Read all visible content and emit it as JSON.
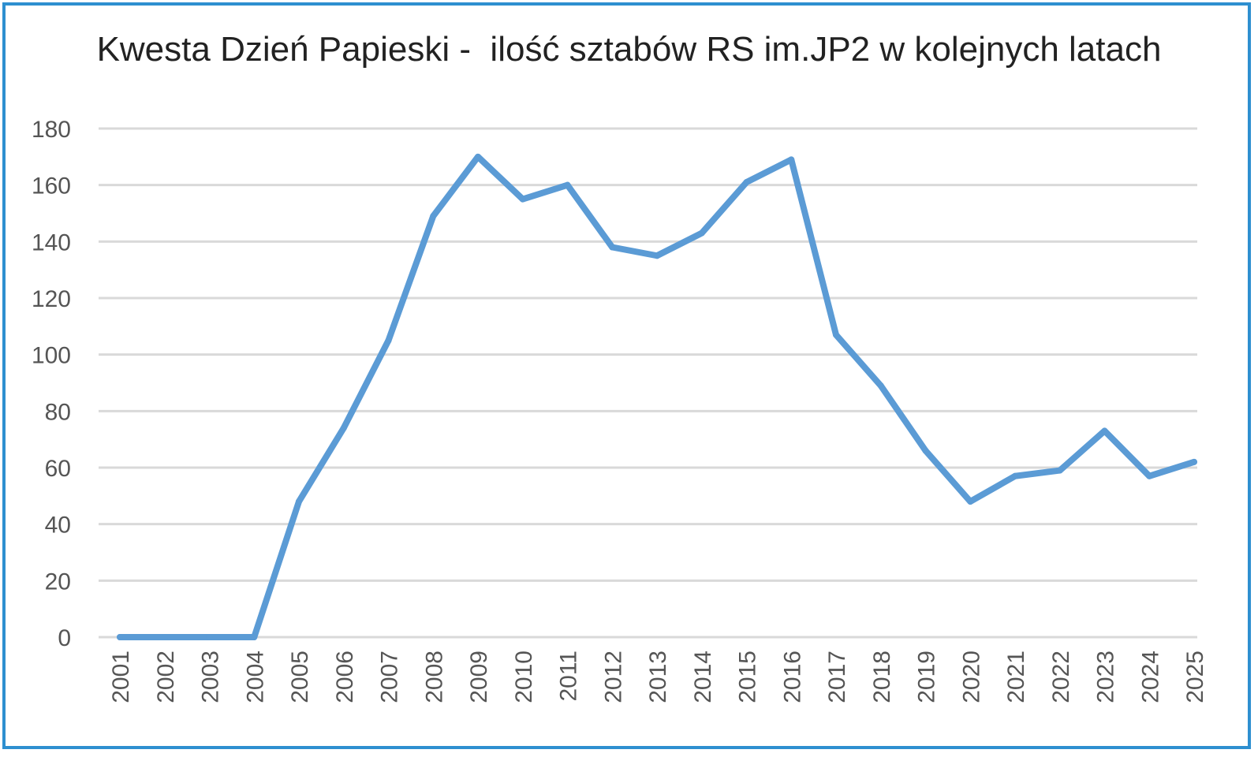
{
  "chart_data": {
    "type": "line",
    "title": "Kwesta Dzień Papieski -  ilość sztabów RS im.JP2 w kolejnych latach",
    "xlabel": "",
    "ylabel": "",
    "ylim": [
      0,
      180
    ],
    "yticks": [
      "0",
      "20",
      "40",
      "60",
      "80",
      "100",
      "120",
      "140",
      "160",
      "180"
    ],
    "grid": true,
    "legend": "none",
    "categories": [
      "2001",
      "2002",
      "2003",
      "2004",
      "2005",
      "2006",
      "2007",
      "2008",
      "2009",
      "2010",
      "2011",
      "2012",
      "2013",
      "2014",
      "2015",
      "2016",
      "2017",
      "2018",
      "2019",
      "2020",
      "2021",
      "2022",
      "2023",
      "2024",
      "2025"
    ],
    "series": [
      {
        "values": [
          0,
          0,
          0,
          0,
          48,
          74,
          105,
          149,
          170,
          155,
          160,
          138,
          135,
          143,
          161,
          169,
          107,
          89,
          66,
          48,
          57,
          59,
          73,
          57,
          62
        ]
      }
    ],
    "colors": {
      "line": "#5b9bd5",
      "grid": "#d9d9d9",
      "frame": "#2e8fd0"
    }
  }
}
